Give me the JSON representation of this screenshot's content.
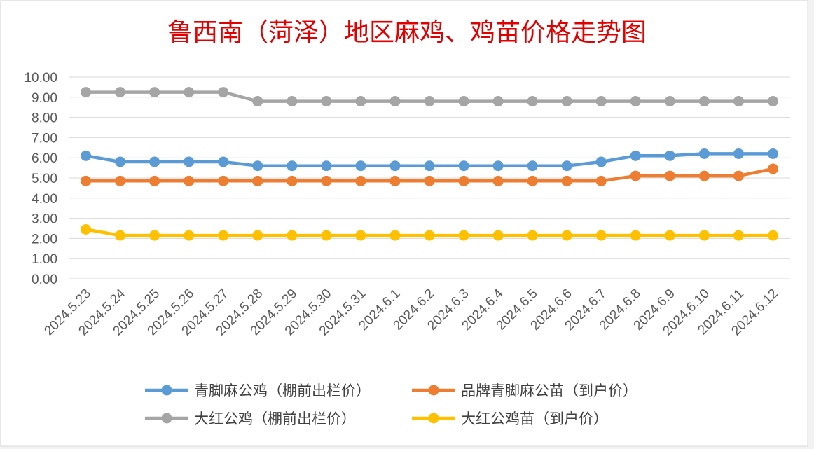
{
  "chart_data": {
    "type": "line",
    "title": "鲁西南（菏泽）地区麻鸡、鸡苗价格走势图",
    "xlabel": "",
    "ylabel": "",
    "ylim": [
      0,
      10
    ],
    "y_ticks": [
      "0.00",
      "1.00",
      "2.00",
      "3.00",
      "4.00",
      "5.00",
      "6.00",
      "7.00",
      "8.00",
      "9.00",
      "10.00"
    ],
    "grid": true,
    "legend_position": "bottom",
    "categories": [
      "2024.5.23",
      "2024.5.24",
      "2024.5.25",
      "2024.5.26",
      "2024.5.27",
      "2024.5.28",
      "2024.5.29",
      "2024.5.30",
      "2024.5.31",
      "2024.6.1",
      "2024.6.2",
      "2024.6.3",
      "2024.6.4",
      "2024.6.5",
      "2024.6.6",
      "2024.6.7",
      "2024.6.8",
      "2024.6.9",
      "2024.6.10",
      "2024.6.11",
      "2024.6.12"
    ],
    "series": [
      {
        "name": "青脚麻公鸡（棚前出栏价）",
        "color": "#5b9bd5",
        "values": [
          6.1,
          5.8,
          5.8,
          5.8,
          5.8,
          5.6,
          5.6,
          5.6,
          5.6,
          5.6,
          5.6,
          5.6,
          5.6,
          5.6,
          5.6,
          5.8,
          6.1,
          6.1,
          6.2,
          6.2,
          6.2
        ]
      },
      {
        "name": "品牌青脚麻公苗（到户价）",
        "color": "#ed7d31",
        "values": [
          4.85,
          4.85,
          4.85,
          4.85,
          4.85,
          4.85,
          4.85,
          4.85,
          4.85,
          4.85,
          4.85,
          4.85,
          4.85,
          4.85,
          4.85,
          4.85,
          5.1,
          5.1,
          5.1,
          5.1,
          5.45
        ]
      },
      {
        "name": "大红公鸡（棚前出栏价）",
        "color": "#a5a5a5",
        "values": [
          9.25,
          9.25,
          9.25,
          9.25,
          9.25,
          8.8,
          8.8,
          8.8,
          8.8,
          8.8,
          8.8,
          8.8,
          8.8,
          8.8,
          8.8,
          8.8,
          8.8,
          8.8,
          8.8,
          8.8,
          8.8
        ]
      },
      {
        "name": "大红公鸡苗（到户价）",
        "color": "#ffc000",
        "values": [
          2.45,
          2.15,
          2.15,
          2.15,
          2.15,
          2.15,
          2.15,
          2.15,
          2.15,
          2.15,
          2.15,
          2.15,
          2.15,
          2.15,
          2.15,
          2.15,
          2.15,
          2.15,
          2.15,
          2.15,
          2.15
        ]
      }
    ]
  }
}
